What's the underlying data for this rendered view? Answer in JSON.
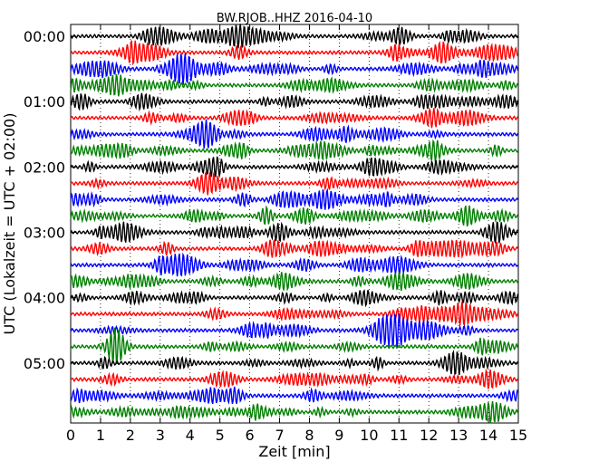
{
  "chart_data": {
    "type": "line",
    "title": "BW.RJOB..HHZ 2016-04-10",
    "xlabel": "Zeit  [min]",
    "ylabel": "UTC (Lokalzeit = UTC + 02:00)",
    "xlim": [
      0,
      15
    ],
    "x_ticks": [
      "0",
      "1",
      "2",
      "3",
      "4",
      "5",
      "6",
      "7",
      "8",
      "9",
      "10",
      "11",
      "12",
      "13",
      "14",
      "15"
    ],
    "y_ticks": [
      "00:00",
      "01:00",
      "02:00",
      "03:00",
      "04:00",
      "05:00"
    ],
    "traces_per_hour": 4,
    "minutes_per_trace": 15,
    "trace_count": 24,
    "trace_colors": [
      "#000000",
      "#ff0000",
      "#0000ff",
      "#008000"
    ],
    "grid": "vertical dotted",
    "series": [
      {
        "start": "00:00"
      },
      {
        "start": "00:15"
      },
      {
        "start": "00:30"
      },
      {
        "start": "00:45"
      },
      {
        "start": "01:00"
      },
      {
        "start": "01:15"
      },
      {
        "start": "01:30"
      },
      {
        "start": "01:45"
      },
      {
        "start": "02:00"
      },
      {
        "start": "02:15"
      },
      {
        "start": "02:30"
      },
      {
        "start": "02:45"
      },
      {
        "start": "03:00"
      },
      {
        "start": "03:15"
      },
      {
        "start": "03:30"
      },
      {
        "start": "03:45"
      },
      {
        "start": "04:00"
      },
      {
        "start": "04:15"
      },
      {
        "start": "04:30"
      },
      {
        "start": "04:45"
      },
      {
        "start": "05:00"
      },
      {
        "start": "05:15"
      },
      {
        "start": "05:30"
      },
      {
        "start": "05:45"
      }
    ]
  }
}
